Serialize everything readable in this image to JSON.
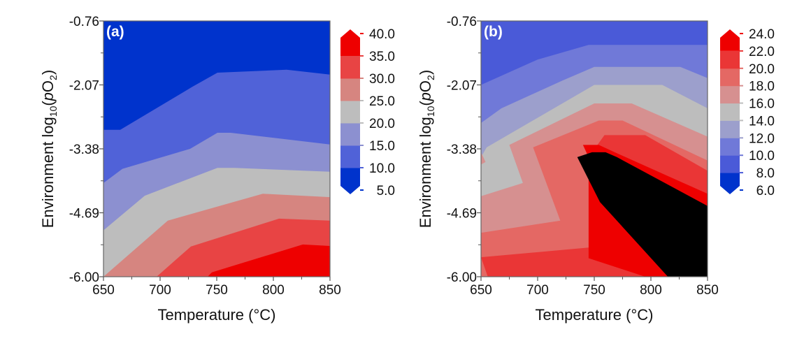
{
  "chart_data": [
    {
      "type": "contour",
      "panel_label": "(a)",
      "xlabel": "Temperature (°C)",
      "ylabel_prefix": "Environment log",
      "ylabel_sub": "10",
      "ylabel_mid": "(",
      "ylabel_italic": "p",
      "ylabel_o": "O",
      "ylabel_sub2": "2",
      "ylabel_end": ")",
      "xlim": [
        650,
        850
      ],
      "ylim": [
        -6.0,
        -0.76
      ],
      "x_ticks": [
        650,
        700,
        750,
        800,
        850
      ],
      "x_tick_labels": [
        "650",
        "700",
        "750",
        "800",
        "850"
      ],
      "y_ticks": [
        -6.0,
        -4.69,
        -3.38,
        -2.07,
        -0.76
      ],
      "y_tick_labels": [
        "-6.00",
        "-4.69",
        "-3.38",
        "-2.07",
        "-0.76"
      ],
      "colorbar": {
        "levels": [
          5.0,
          10.0,
          15.0,
          20.0,
          25.0,
          30.0,
          35.0,
          40.0
        ],
        "level_labels": [
          "5.0",
          "10.0",
          "15.0",
          "20.0",
          "25.0",
          "30.0",
          "35.0",
          "40.0"
        ],
        "band_colors": [
          "#0033cc",
          "#5062d8",
          "#8c90d0",
          "#bdbdbd",
          "#d68580",
          "#e84444",
          "#ee0000"
        ],
        "extend": "both"
      },
      "boundaries": [
        {
          "level": 10.0,
          "points": [
            [
              650,
              -2.99
            ],
            [
              664.8,
              -2.99
            ],
            [
              728.4,
              -2.11
            ],
            [
              750.6,
              -1.82
            ],
            [
              811.7,
              -1.76
            ],
            [
              850,
              -1.86
            ]
          ]
        },
        {
          "level": 15.0,
          "points": [
            [
              650,
              -4.08
            ],
            [
              666.7,
              -3.79
            ],
            [
              726.5,
              -3.38
            ],
            [
              750.6,
              -3.05
            ],
            [
              762.3,
              -3.05
            ],
            [
              850,
              -3.29
            ]
          ]
        },
        {
          "level": 20.0,
          "points": [
            [
              650,
              -5.05
            ],
            [
              686.4,
              -4.34
            ],
            [
              750.6,
              -3.77
            ],
            [
              765.4,
              -3.77
            ],
            [
              850,
              -3.85
            ]
          ]
        },
        {
          "level": 25.0,
          "points": [
            [
              650,
              -6.0
            ],
            [
              706.8,
              -4.85
            ],
            [
              790.7,
              -4.3
            ],
            [
              850,
              -4.37
            ]
          ]
        },
        {
          "level": 30.0,
          "points": [
            [
              696.9,
              -6.0
            ],
            [
              727.2,
              -5.38
            ],
            [
              805.0,
              -4.81
            ],
            [
              850,
              -4.85
            ]
          ]
        },
        {
          "level": 35.0,
          "points": [
            [
              742.0,
              -6.0
            ],
            [
              745.7,
              -5.91
            ],
            [
              826.0,
              -5.34
            ],
            [
              850,
              -5.37
            ]
          ]
        }
      ]
    },
    {
      "type": "contour",
      "panel_label": "(b)",
      "xlabel": "Temperature (°C)",
      "ylabel_prefix": "Environment log",
      "ylabel_sub": "10",
      "ylabel_mid": "(",
      "ylabel_italic": "p",
      "ylabel_o": "O",
      "ylabel_sub2": "2",
      "ylabel_end": ")",
      "xlim": [
        650,
        850
      ],
      "ylim": [
        -6.0,
        -0.76
      ],
      "x_ticks": [
        650,
        700,
        750,
        800,
        850
      ],
      "x_tick_labels": [
        "650",
        "700",
        "750",
        "800",
        "850"
      ],
      "y_ticks": [
        -6.0,
        -4.69,
        -3.38,
        -2.07,
        -0.76
      ],
      "y_tick_labels": [
        "-6.00",
        "-4.69",
        "-3.38",
        "-2.07",
        "-0.76"
      ],
      "colorbar": {
        "levels": [
          6.0,
          8.0,
          10.0,
          12.0,
          14.0,
          16.0,
          18.0,
          20.0,
          22.0,
          24.0
        ],
        "level_labels": [
          "6.0",
          "8.0",
          "10.0",
          "12.0",
          "14.0",
          "16.0",
          "18.0",
          "20.0",
          "22.0",
          "24.0"
        ],
        "band_colors": [
          "#0033cc",
          "#4a5ad8",
          "#7079d8",
          "#9c9fcc",
          "#bdbdbd",
          "#d69090",
          "#e46864",
          "#ea3636",
          "#ee0000"
        ],
        "extend": "both"
      },
      "bands": [
        {
          "level": 8.0,
          "polygon": [
            [
              650,
              -0.76
            ],
            [
              850,
              -0.76
            ],
            [
              850,
              -6.0
            ],
            [
              650,
              -6.0
            ]
          ]
        },
        {
          "level": 10.0,
          "polygon": [
            [
              650,
              -2.07
            ],
            [
              700,
              -1.55
            ],
            [
              745,
              -1.25
            ],
            [
              850,
              -1.25
            ],
            [
              850,
              -6.0
            ],
            [
              650,
              -6.0
            ]
          ]
        },
        {
          "level": 12.0,
          "polygon": [
            [
              650,
              -2.85
            ],
            [
              668,
              -2.55
            ],
            [
              722,
              -1.98
            ],
            [
              750,
              -1.7
            ],
            [
              826,
              -1.7
            ],
            [
              850,
              -1.93
            ],
            [
              850,
              -6.0
            ],
            [
              650,
              -6.0
            ]
          ]
        },
        {
          "level": 14.0,
          "polygon": [
            [
              650,
              -3.55
            ],
            [
              655,
              -3.35
            ],
            [
              750,
              -2.07
            ],
            [
              810,
              -2.07
            ],
            [
              850,
              -2.55
            ],
            [
              850,
              -6.0
            ],
            [
              650,
              -6.0
            ]
          ]
        },
        {
          "level": 16.0,
          "polygon": [
            [
              650,
              -3.45
            ],
            [
              654,
              -3.65
            ],
            [
              650,
              -3.7
            ],
            [
              650,
              -4.35
            ],
            [
              687,
              -4.08
            ],
            [
              675,
              -3.3
            ],
            [
              750,
              -2.45
            ],
            [
              783,
              -2.45
            ],
            [
              850,
              -3.13
            ],
            [
              850,
              -6.0
            ],
            [
              650,
              -6.0
            ]
          ]
        },
        {
          "level": 18.0,
          "polygon": [
            [
              650,
              -5.1
            ],
            [
              720,
              -4.85
            ],
            [
              696,
              -3.35
            ],
            [
              754,
              -2.8
            ],
            [
              775,
              -2.8
            ],
            [
              850,
              -3.62
            ],
            [
              850,
              -6.0
            ],
            [
              650,
              -6.0
            ]
          ]
        },
        {
          "level": 20.0,
          "polygon": [
            [
              650,
              -5.6
            ],
            [
              746,
              -5.4
            ],
            [
              745,
              -3.55
            ],
            [
              759,
              -3.1
            ],
            [
              795,
              -3.1
            ],
            [
              850,
              -3.83
            ],
            [
              850,
              -6.0
            ],
            [
              656,
              -6.0
            ]
          ]
        },
        {
          "level": 22.0,
          "polygon": [
            [
              740,
              -3.3
            ],
            [
              754,
              -3.3
            ],
            [
              768,
              -3.45
            ],
            [
              850,
              -4.3
            ],
            [
              850,
              -6.0
            ],
            [
              795,
              -6.0
            ],
            [
              745,
              -5.62
            ],
            [
              745,
              -3.55
            ]
          ]
        },
        {
          "level": 24.0,
          "polygon": [
            [
              735,
              -3.55
            ],
            [
              748,
              -3.45
            ],
            [
              760,
              -3.45
            ],
            [
              770,
              -3.55
            ],
            [
              850,
              -4.55
            ],
            [
              850,
              -6.0
            ],
            [
              815,
              -6.0
            ],
            [
              755,
              -4.47
            ]
          ]
        }
      ]
    }
  ]
}
